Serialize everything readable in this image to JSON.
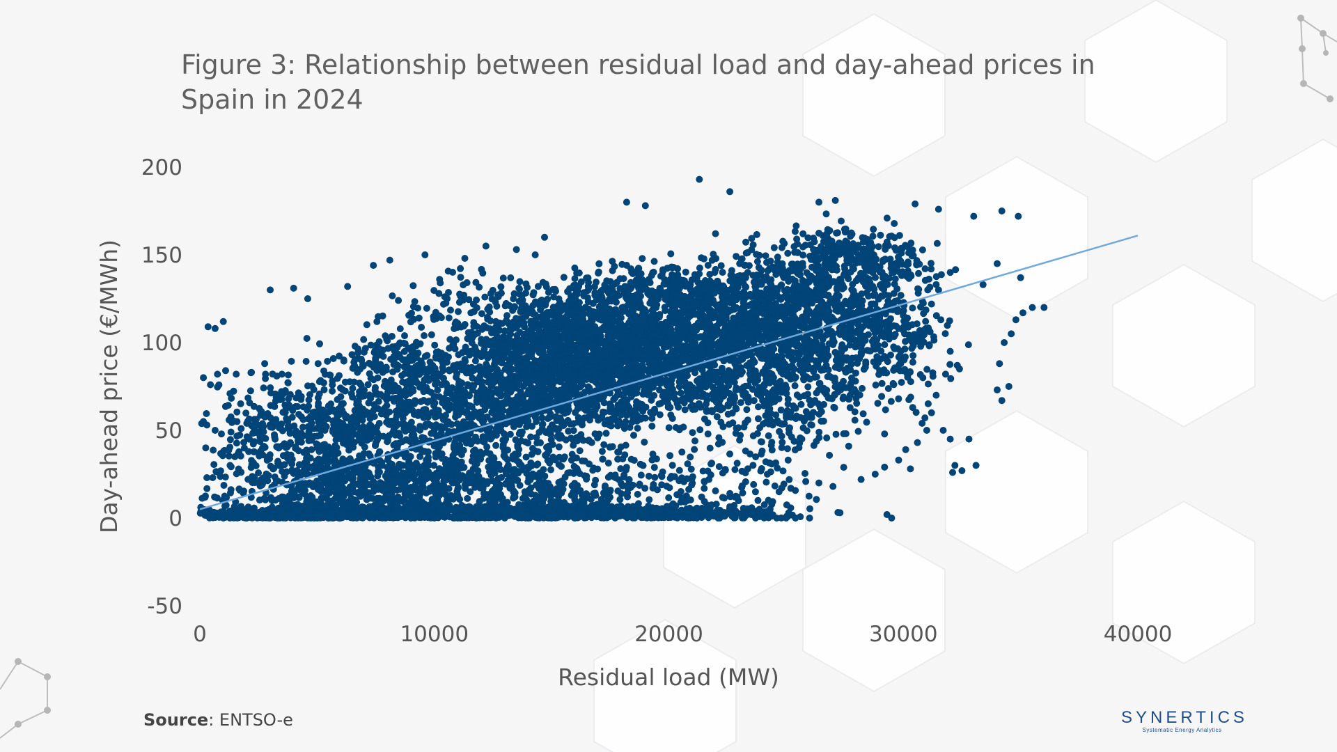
{
  "title_line1": "Figure 3: Relationship between residual load and day-ahead prices in",
  "title_line2": "Spain in 2024",
  "source_label": "Source",
  "source_text": ": ENTSO-e",
  "logo": {
    "name": "SYNERTICS",
    "tagline": "Systematic Energy Analytics"
  },
  "colors": {
    "points": "#014477",
    "trendline": "#6fa8dc",
    "logo": "#1f4e86"
  },
  "chart_data": {
    "type": "scatter",
    "title": "Figure 3: Relationship between residual load and day-ahead prices in Spain in 2024",
    "xlabel": "Residual load (MW)",
    "ylabel": "Day-ahead price (€/MWh)",
    "xlim": [
      0,
      40000
    ],
    "ylim": [
      -50,
      200
    ],
    "xticks": [
      "0",
      "10000",
      "20000",
      "30000",
      "40000"
    ],
    "yticks": [
      "200",
      "150",
      "100",
      "50",
      "0",
      "-50"
    ],
    "grid": false,
    "legend": "none",
    "trendline": {
      "x": [
        0,
        40000
      ],
      "y": [
        5,
        161
      ]
    },
    "series": [
      {
        "points": [
          [
            21300,
            193
          ],
          [
            22600,
            186
          ],
          [
            18200,
            180
          ],
          [
            19000,
            178
          ],
          [
            26400,
            180
          ],
          [
            27100,
            181
          ],
          [
            30500,
            179
          ],
          [
            31500,
            176
          ],
          [
            33000,
            172
          ],
          [
            34200,
            175
          ],
          [
            34900,
            172
          ],
          [
            35500,
            120
          ],
          [
            35100,
            117
          ],
          [
            34800,
            113
          ],
          [
            34600,
            105
          ],
          [
            34300,
            100
          ],
          [
            34500,
            75
          ],
          [
            34000,
            73
          ],
          [
            34200,
            67
          ],
          [
            34100,
            88
          ],
          [
            32200,
            30
          ],
          [
            32500,
            27
          ],
          [
            32100,
            26
          ],
          [
            33100,
            30
          ],
          [
            32800,
            45
          ],
          [
            32000,
            45
          ],
          [
            7400,
            144
          ],
          [
            8100,
            147
          ],
          [
            9600,
            150
          ],
          [
            11300,
            148
          ],
          [
            12200,
            155
          ],
          [
            13500,
            153
          ],
          [
            14300,
            150
          ],
          [
            14700,
            160
          ],
          [
            3000,
            130
          ],
          [
            4000,
            131
          ],
          [
            6300,
            132
          ],
          [
            4600,
            125
          ],
          [
            1000,
            112
          ],
          [
            350,
            109
          ],
          [
            650,
            108
          ],
          [
            150,
            80
          ],
          [
            450,
            76
          ],
          [
            750,
            82
          ],
          [
            1100,
            84
          ],
          [
            1550,
            82
          ],
          [
            2200,
            83
          ],
          [
            2800,
            82
          ],
          [
            3500,
            82
          ],
          [
            300,
            53
          ],
          [
            650,
            50
          ],
          [
            250,
            40
          ],
          [
            300,
            23
          ],
          [
            550,
            23
          ],
          [
            150,
            55
          ],
          [
            29300,
            2
          ],
          [
            29500,
            0
          ],
          [
            27300,
            3
          ],
          [
            26000,
            0
          ],
          [
            25400,
            0
          ],
          [
            25000,
            0
          ],
          [
            24600,
            0
          ],
          [
            23700,
            0
          ],
          [
            22700,
            1
          ],
          [
            22100,
            0
          ],
          [
            21200,
            0
          ],
          [
            20100,
            1
          ],
          [
            17700,
            1
          ],
          [
            26400,
            20
          ],
          [
            27000,
            18
          ],
          [
            28200,
            22
          ],
          [
            28800,
            25
          ],
          [
            29200,
            29
          ],
          [
            24200,
            25
          ],
          [
            25200,
            17
          ],
          [
            23800,
            10
          ],
          [
            24700,
            15
          ],
          [
            22600,
            14
          ],
          [
            21400,
            12
          ],
          [
            20800,
            10
          ],
          [
            36000,
            120
          ],
          [
            35000,
            137
          ],
          [
            34000,
            145
          ],
          [
            33400,
            133
          ],
          [
            32000,
            140
          ],
          [
            31500,
            130
          ],
          [
            31200,
            122
          ],
          [
            31600,
            113
          ],
          [
            32000,
            95
          ],
          [
            31800,
            82
          ],
          [
            32300,
            87
          ],
          [
            31400,
            70
          ],
          [
            31200,
            60
          ],
          [
            31700,
            50
          ],
          [
            30700,
            100
          ],
          [
            30400,
            63
          ],
          [
            30800,
            54
          ],
          [
            31000,
            50
          ],
          [
            30600,
            43
          ],
          [
            30100,
            39
          ],
          [
            29800,
            33
          ],
          [
            30300,
            28
          ],
          [
            9000,
            0
          ],
          [
            5000,
            0
          ],
          [
            7000,
            1
          ],
          [
            11000,
            0
          ],
          [
            13000,
            0
          ],
          [
            15000,
            0
          ],
          [
            4000,
            3
          ],
          [
            3000,
            0
          ],
          [
            2000,
            0
          ],
          [
            1000,
            0
          ],
          [
            6000,
            0
          ],
          [
            8000,
            2
          ],
          [
            10000,
            0
          ],
          [
            12000,
            1
          ],
          [
            14000,
            0
          ],
          [
            16000,
            0
          ]
        ],
        "clusters": [
          {
            "cx": 2500,
            "cy": 2,
            "sx": 2500,
            "sy": 2,
            "n": 260
          },
          {
            "cx": 8000,
            "cy": 3,
            "sx": 4200,
            "sy": 3,
            "n": 620
          },
          {
            "cx": 16000,
            "cy": 3,
            "sx": 4000,
            "sy": 3,
            "n": 420
          },
          {
            "cx": 22000,
            "cy": 3,
            "sx": 2800,
            "sy": 3,
            "n": 130
          },
          {
            "cx": 6000,
            "cy": 18,
            "sx": 3600,
            "sy": 14,
            "n": 480
          },
          {
            "cx": 13000,
            "cy": 18,
            "sx": 4500,
            "sy": 14,
            "n": 440
          },
          {
            "cx": 21000,
            "cy": 22,
            "sx": 3500,
            "sy": 12,
            "n": 120
          },
          {
            "cx": 4500,
            "cy": 50,
            "sx": 3000,
            "sy": 22,
            "n": 420
          },
          {
            "cx": 10000,
            "cy": 58,
            "sx": 3500,
            "sy": 28,
            "n": 680
          },
          {
            "cx": 15000,
            "cy": 72,
            "sx": 3300,
            "sy": 30,
            "n": 900
          },
          {
            "cx": 16000,
            "cy": 100,
            "sx": 2800,
            "sy": 18,
            "n": 800
          },
          {
            "cx": 20000,
            "cy": 95,
            "sx": 3300,
            "sy": 28,
            "n": 950
          },
          {
            "cx": 23500,
            "cy": 110,
            "sx": 3000,
            "sy": 26,
            "n": 700
          },
          {
            "cx": 26500,
            "cy": 120,
            "sx": 2500,
            "sy": 28,
            "n": 520
          },
          {
            "cx": 27800,
            "cy": 150,
            "sx": 2200,
            "sy": 10,
            "n": 220
          },
          {
            "cx": 29300,
            "cy": 108,
            "sx": 1800,
            "sy": 30,
            "n": 260
          },
          {
            "cx": 19500,
            "cy": 130,
            "sx": 3200,
            "sy": 10,
            "n": 260
          },
          {
            "cx": 25000,
            "cy": 65,
            "sx": 2500,
            "sy": 22,
            "n": 260
          },
          {
            "cx": 12000,
            "cy": 120,
            "sx": 2500,
            "sy": 15,
            "n": 110
          },
          {
            "cx": 8500,
            "cy": 90,
            "sx": 2200,
            "sy": 15,
            "n": 130
          }
        ]
      }
    ]
  }
}
